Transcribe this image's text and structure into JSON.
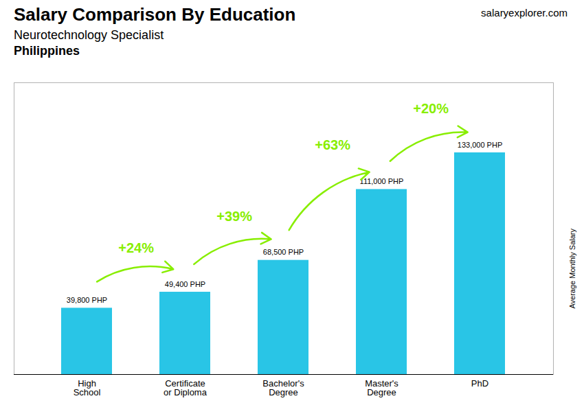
{
  "chart_data": {
    "type": "bar",
    "title": "Salary Comparison By Education",
    "subtitle": "Neurotechnology Specialist",
    "country": "Philippines",
    "website": "salaryexplorer.com",
    "ylabel": "Average Monthly Salary",
    "categories": [
      "High\nSchool",
      "Certificate\nor Diploma",
      "Bachelor's\nDegree",
      "Master's\nDegree",
      "PhD"
    ],
    "values": [
      39800,
      49400,
      68500,
      111000,
      133000
    ],
    "value_labels": [
      "39,800 PHP",
      "49,400 PHP",
      "68,500 PHP",
      "111,000 PHP",
      "133,000 PHP"
    ],
    "data_labels": true,
    "color": "#29C5E6",
    "annotations": [
      {
        "text": "+24%",
        "color": "#88EE00"
      },
      {
        "text": "+39%",
        "color": "#88EE00"
      },
      {
        "text": "+63%",
        "color": "#88EE00"
      },
      {
        "text": "+20%",
        "color": "#88EE00"
      }
    ],
    "ylim": [
      0,
      175000
    ],
    "tick_labels": "x"
  }
}
